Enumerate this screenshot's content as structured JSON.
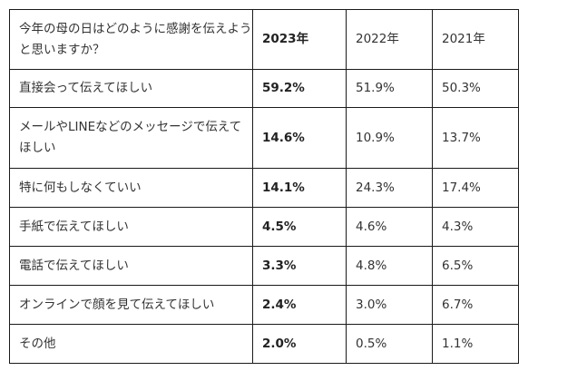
{
  "header": {
    "question": "今年の母の日はどのように感謝を伝えようと思いますか？",
    "years": [
      "2023年",
      "2022年",
      "2021年"
    ]
  },
  "rows": [
    {
      "label": "直接会って伝えてほしい",
      "values": [
        "59.2%",
        "51.9%",
        "50.3%"
      ]
    },
    {
      "label": "メールやLINEなどのメッセージで伝えてほしい",
      "values": [
        "14.6%",
        "10.9%",
        "13.7%"
      ]
    },
    {
      "label": "特に何もしなくていい",
      "values": [
        "14.1%",
        "24.3%",
        "17.4%"
      ]
    },
    {
      "label": "手紙で伝えてほしい",
      "values": [
        "4.5%",
        "4.6%",
        "4.3%"
      ]
    },
    {
      "label": "電話で伝えてほしい",
      "values": [
        "3.3%",
        "4.8%",
        "6.5%"
      ]
    },
    {
      "label": "オンラインで顔を見て伝えてほしい",
      "values": [
        "2.4%",
        "3.0%",
        "6.7%"
      ]
    },
    {
      "label": "その他",
      "values": [
        "2.0%",
        "0.5%",
        "1.1%"
      ]
    }
  ]
}
